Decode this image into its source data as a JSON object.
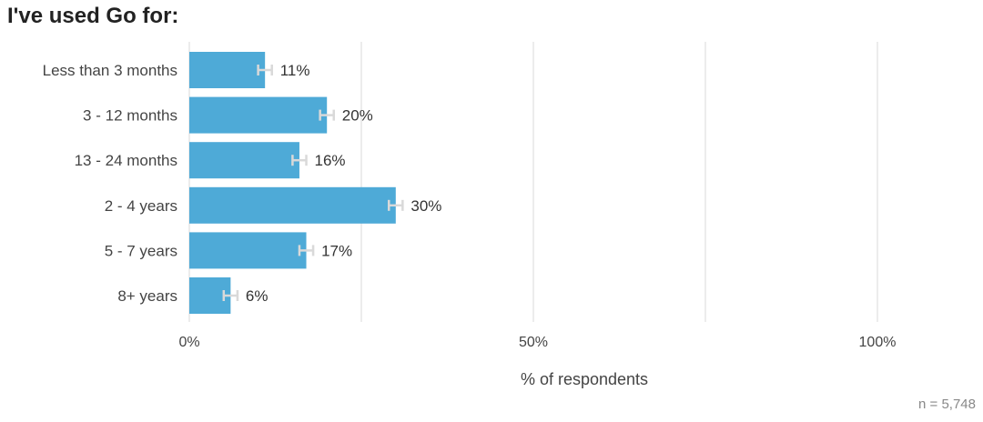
{
  "chart_data": {
    "type": "bar",
    "orientation": "horizontal",
    "title": "I've used Go for:",
    "categories": [
      "Less than 3 months",
      "3 - 12 months",
      "13 - 24 months",
      "2 - 4 years",
      "5 - 7 years",
      "8+ years"
    ],
    "values": [
      11,
      20,
      16,
      30,
      17,
      6
    ],
    "value_labels": [
      "11%",
      "20%",
      "16%",
      "30%",
      "17%",
      "6%"
    ],
    "error_margin": [
      1,
      1,
      1,
      1,
      1,
      1
    ],
    "xlabel": "% of respondents",
    "ylabel": "",
    "xlim": [
      0,
      100
    ],
    "x_ticks": [
      0,
      50,
      100
    ],
    "x_tick_labels": [
      "0%",
      "50%",
      "100%"
    ],
    "gridlines": [
      0,
      25,
      50,
      75,
      100
    ],
    "grid": true,
    "bar_color": "#4eaad7",
    "error_bar_color": "#d9d9d9",
    "grid_color": "#e6e6e6"
  },
  "footnote": {
    "prefix": "n = ",
    "value": "5,748"
  }
}
